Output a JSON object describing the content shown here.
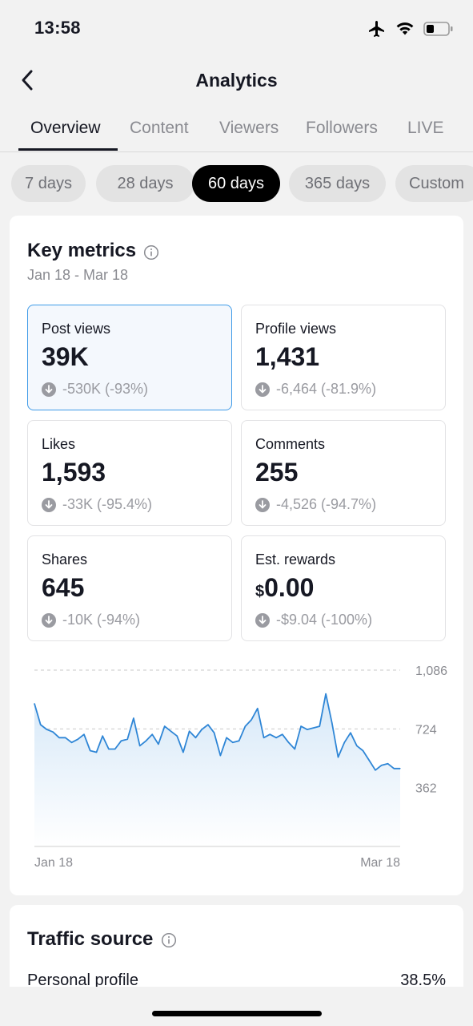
{
  "status_bar": {
    "time": "13:58",
    "icons": [
      "airplane-icon",
      "wifi-icon",
      "battery-icon"
    ]
  },
  "nav": {
    "title": "Analytics",
    "back_icon": "chevron-left-icon"
  },
  "tabs": [
    "Overview",
    "Content",
    "Viewers",
    "Followers",
    "LIVE"
  ],
  "active_tab": "Overview",
  "ranges": [
    "7 days",
    "28 days",
    "60 days",
    "365 days",
    "Custom"
  ],
  "active_range": "60 days",
  "key_metrics": {
    "title": "Key metrics",
    "date_range": "Jan 18 - Mar 18",
    "metrics": [
      {
        "label": "Post views",
        "value": "39K",
        "change": "-530K (-93%)",
        "selected": true
      },
      {
        "label": "Profile views",
        "value": "1,431",
        "change": "-6,464 (-81.9%)",
        "selected": false
      },
      {
        "label": "Likes",
        "value": "1,593",
        "change": "-33K (-95.4%)",
        "selected": false
      },
      {
        "label": "Comments",
        "value": "255",
        "change": "-4,526 (-94.7%)",
        "selected": false
      },
      {
        "label": "Shares",
        "value": "645",
        "change": "-10K (-94%)",
        "selected": false
      },
      {
        "label": "Est. rewards",
        "currency": "$",
        "value": "0.00",
        "change": "-$9.04 (-100%)",
        "selected": false
      }
    ]
  },
  "chart_data": {
    "type": "area",
    "title": "",
    "xlabel": "",
    "ylabel": "",
    "x_ticks": [
      "Jan 18",
      "Mar 18"
    ],
    "y_ticks": [
      362,
      724,
      1086
    ],
    "ylim": [
      0,
      1086
    ],
    "grid": true,
    "series": [
      {
        "values": [
          880,
          750,
          720,
          705,
          670,
          670,
          640,
          660,
          690,
          590,
          580,
          680,
          600,
          600,
          650,
          660,
          790,
          620,
          650,
          690,
          630,
          740,
          710,
          680,
          580,
          710,
          670,
          720,
          750,
          700,
          560,
          670,
          640,
          650,
          740,
          780,
          850,
          670,
          690,
          670,
          690,
          640,
          600,
          740,
          720,
          730,
          740,
          940,
          760,
          550,
          640,
          700,
          620,
          590,
          530,
          470,
          500,
          510,
          480,
          480
        ]
      }
    ],
    "line_color": "#2f86d6",
    "fill_color": "#dcebf9"
  },
  "traffic_source": {
    "title": "Traffic source",
    "rows": [
      {
        "label": "Personal profile",
        "value": "38.5%"
      }
    ]
  }
}
